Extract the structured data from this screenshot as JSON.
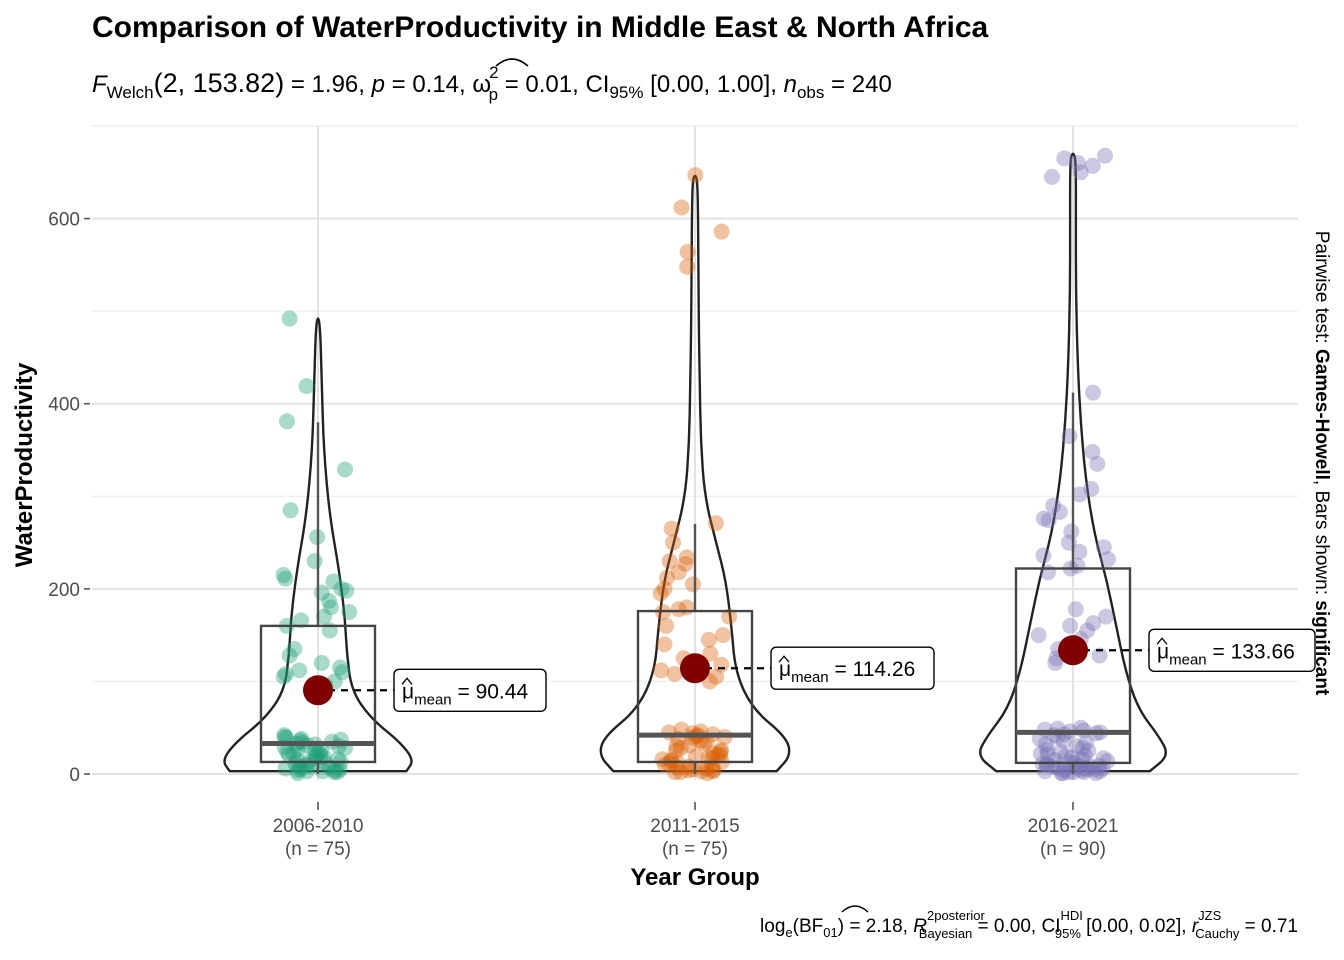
{
  "chart_data": {
    "type": "violin-box-scatter",
    "title": "Comparison of WaterProductivity in Middle East & North Africa",
    "subtitle": {
      "stat_name": "F",
      "stat_subscript": "Welch",
      "stat_args": "(2, 153.82)",
      "stat_value": " = 1.96, ",
      "p_symbol": "p",
      "p_value": " = 0.14, ",
      "effect_symbol": "ω",
      "effect_sup": "2",
      "effect_sub": "p",
      "effect_value": " = 0.01, CI",
      "ci_sub": "95%",
      "ci_value": " [0.00, 1.00], ",
      "n_symbol": "n",
      "n_sub": "obs",
      "n_value": " = 240"
    },
    "xlabel": "Year Group",
    "ylabel": "WaterProductivity",
    "ylim": [
      0,
      700
    ],
    "yticks": [
      0,
      200,
      400,
      600
    ],
    "yticks_labels": [
      "0",
      "200",
      "400",
      "600"
    ],
    "grid": true,
    "groups": [
      {
        "name": "2006-2010",
        "n_label": "(n = 75)",
        "color": "#1b9e77",
        "mean": 90.44,
        "mean_label": "= 90.44",
        "box": {
          "q1": 13,
          "median": 33,
          "q3": 160,
          "whisker_low": 0,
          "whisker_high": 380
        },
        "violin": {
          "max": 492,
          "profile": [
            [
              3,
              0.92
            ],
            [
              15,
              1.0
            ],
            [
              35,
              0.85
            ],
            [
              60,
              0.55
            ],
            [
              90,
              0.35
            ],
            [
              130,
              0.3
            ],
            [
              170,
              0.28
            ],
            [
              220,
              0.22
            ],
            [
              280,
              0.12
            ],
            [
              350,
              0.06
            ],
            [
              420,
              0.04
            ],
            [
              492,
              0.02
            ]
          ]
        },
        "points": [
          492,
          419,
          381,
          329,
          285,
          256,
          230,
          215,
          211,
          208,
          200,
          198,
          196,
          187,
          180,
          175,
          170,
          166,
          160,
          155,
          135,
          128,
          120,
          115,
          112,
          110,
          108,
          105,
          100,
          96,
          42,
          40,
          39,
          38,
          37,
          36,
          35,
          34,
          33,
          32,
          31,
          30,
          29,
          28,
          27,
          26,
          25,
          24,
          23,
          22,
          21,
          20,
          19,
          18,
          17,
          16,
          15,
          14,
          13,
          12,
          11,
          10,
          9,
          8,
          7,
          6,
          5,
          5,
          4,
          4,
          3,
          3,
          2,
          2,
          1
        ]
      },
      {
        "name": "2011-2015",
        "n_label": "(n = 75)",
        "color": "#d95f02",
        "mean": 114.26,
        "mean_label": "= 114.26",
        "box": {
          "q1": 13,
          "median": 42,
          "q3": 176,
          "whisker_low": 0,
          "whisker_high": 270
        },
        "violin": {
          "max": 646,
          "profile": [
            [
              3,
              0.85
            ],
            [
              20,
              1.0
            ],
            [
              40,
              0.95
            ],
            [
              70,
              0.6
            ],
            [
              110,
              0.42
            ],
            [
              160,
              0.38
            ],
            [
              210,
              0.32
            ],
            [
              250,
              0.22
            ],
            [
              300,
              0.1
            ],
            [
              360,
              0.06
            ],
            [
              420,
              0.05
            ],
            [
              480,
              0.04
            ],
            [
              560,
              0.035
            ],
            [
              620,
              0.03
            ],
            [
              646,
              0.02
            ]
          ]
        },
        "points": [
          647,
          612,
          586,
          564,
          548,
          271,
          265,
          250,
          234,
          230,
          227,
          218,
          212,
          205,
          200,
          195,
          180,
          178,
          175,
          170,
          160,
          150,
          145,
          140,
          130,
          125,
          118,
          112,
          108,
          105,
          100,
          48,
          46,
          45,
          44,
          43,
          42,
          41,
          40,
          39,
          38,
          36,
          35,
          33,
          31,
          30,
          28,
          26,
          25,
          24,
          22,
          21,
          20,
          19,
          18,
          17,
          16,
          15,
          14,
          13,
          12,
          11,
          10,
          9,
          8,
          7,
          6,
          5,
          4,
          4,
          3,
          3,
          2,
          2,
          1
        ]
      },
      {
        "name": "2016-2021",
        "n_label": "(n = 90)",
        "color": "#7570b3",
        "mean": 133.66,
        "mean_label": "= 133.66",
        "box": {
          "q1": 12,
          "median": 45,
          "q3": 222,
          "whisker_low": 0,
          "whisker_high": 412
        },
        "violin": {
          "max": 670,
          "profile": [
            [
              3,
              0.8
            ],
            [
              20,
              1.0
            ],
            [
              40,
              0.9
            ],
            [
              70,
              0.68
            ],
            [
              110,
              0.55
            ],
            [
              160,
              0.45
            ],
            [
              210,
              0.35
            ],
            [
              260,
              0.22
            ],
            [
              320,
              0.13
            ],
            [
              380,
              0.08
            ],
            [
              440,
              0.05
            ],
            [
              520,
              0.03
            ],
            [
              600,
              0.03
            ],
            [
              650,
              0.03
            ],
            [
              670,
              0.02
            ]
          ]
        },
        "points": [
          668,
          665,
          660,
          657,
          650,
          645,
          412,
          365,
          348,
          335,
          308,
          302,
          290,
          283,
          276,
          274,
          262,
          250,
          245,
          240,
          236,
          232,
          225,
          222,
          218,
          178,
          170,
          163,
          160,
          155,
          150,
          146,
          140,
          135,
          128,
          125,
          120,
          50,
          49,
          48,
          47,
          46,
          45,
          44,
          43,
          42,
          40,
          38,
          36,
          34,
          32,
          30,
          28,
          26,
          25,
          24,
          22,
          21,
          20,
          19,
          18,
          17,
          16,
          15,
          14,
          13,
          12,
          11,
          10,
          10,
          9,
          9,
          8,
          8,
          7,
          7,
          6,
          6,
          5,
          5,
          4,
          4,
          3,
          3,
          2,
          2,
          2,
          1,
          1,
          1
        ]
      }
    ],
    "mean_symbol": "μ",
    "mean_sub": "mean",
    "mean_color": "#800000",
    "side_label": {
      "prefix": "Pairwise test: ",
      "test": "Games-Howell",
      "middle": ", Bars shown: ",
      "shown": "significant"
    },
    "caption": {
      "log_prefix": "log",
      "log_sub": "e",
      "bf_open": "(BF",
      "bf_sub": "01",
      "bf_value": ") = 2.18, ",
      "r_symbol": "R",
      "r_sup": "2",
      "r_sup_label": "posterior",
      "r_sub": "Bayesian",
      "r_value": " = 0.00, CI",
      "ci_sup": "HDI",
      "ci_sub": "95%",
      "ci_value": " [0.00, 0.02], ",
      "rj_symbol": "r",
      "rj_sup": "JZS",
      "rj_sub": "Cauchy",
      "rj_value": " = 0.71"
    }
  }
}
